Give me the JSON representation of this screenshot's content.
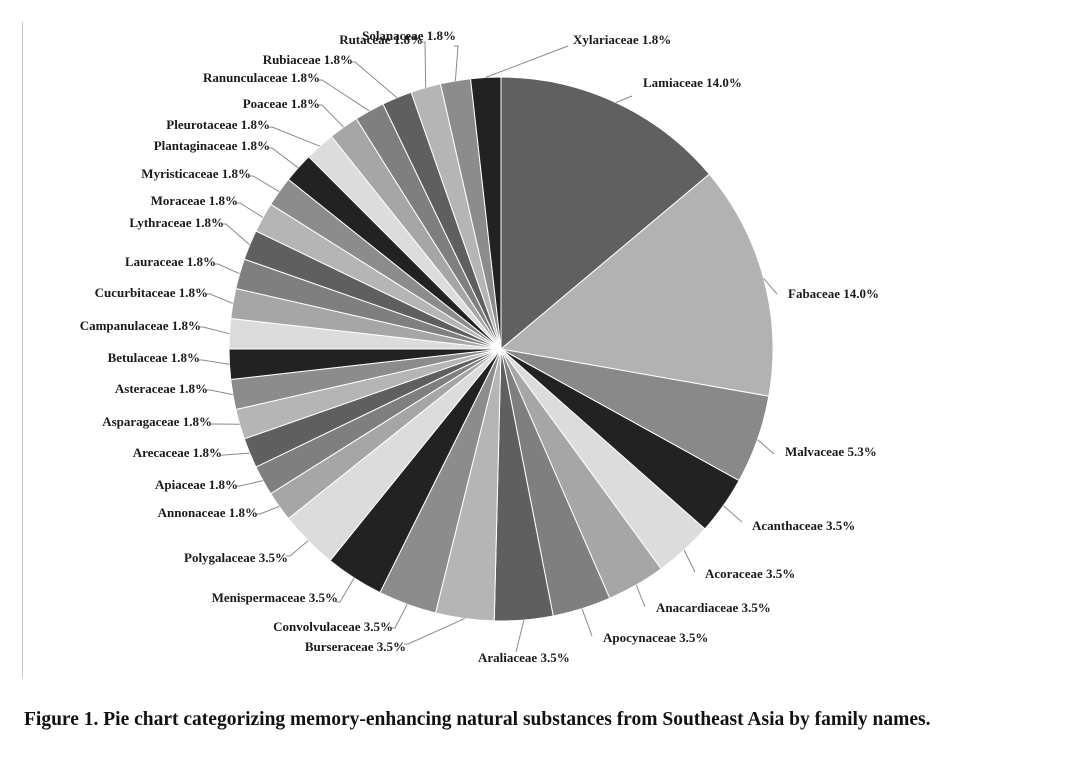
{
  "caption": "Figure 1. Pie chart categorizing memory-enhancing natural substances from Southeast Asia by family names.",
  "chart_data": {
    "type": "pie",
    "title": "",
    "start": "12 o'clock",
    "direction": "clockwise",
    "slices": [
      {
        "label": "Lamiaceae",
        "display": "Lamiaceae  14.0%",
        "value": 14.0,
        "color": "#606060"
      },
      {
        "label": "Fabaceae",
        "display": "Fabaceae 14.0%",
        "value": 14.0,
        "color": "#b2b2b2"
      },
      {
        "label": "Malvaceae",
        "display": "Malvaceae 5.3%",
        "value": 5.3,
        "color": "#898989"
      },
      {
        "label": "Acanthaceae",
        "display": "Acanthaceae 3.5%",
        "value": 3.5,
        "color": "#222222"
      },
      {
        "label": "Acoraceae",
        "display": "Acoraceae 3.5%",
        "value": 3.5,
        "color": "#dcdcdc"
      },
      {
        "label": "Anacardiaceae",
        "display": "Anacardiaceae 3.5%",
        "value": 3.5,
        "color": "#a6a6a6"
      },
      {
        "label": "Apocynaceae",
        "display": "Apocynaceae 3.5%",
        "value": 3.5,
        "color": "#7f7f7f"
      },
      {
        "label": "Araliaceae",
        "display": "Araliaceae 3.5%",
        "value": 3.5,
        "color": "#5f5f5f"
      },
      {
        "label": "Burseraceae",
        "display": "Burseraceae 3.5%",
        "value": 3.5,
        "color": "#b5b5b5"
      },
      {
        "label": "Convolvulaceae",
        "display": "Convolvulaceae 3.5%",
        "value": 3.5,
        "color": "#8c8c8c"
      },
      {
        "label": "Menispermaceae",
        "display": "Menispermaceae 3.5%",
        "value": 3.5,
        "color": "#222222"
      },
      {
        "label": "Polygalaceae",
        "display": "Polygalaceae 3.5%",
        "value": 3.5,
        "color": "#dcdcdc"
      },
      {
        "label": "Annonaceae",
        "display": "Annonaceae 1.8%",
        "value": 1.8,
        "color": "#a6a6a6"
      },
      {
        "label": "Apiaceae",
        "display": "Apiaceae 1.8%",
        "value": 1.8,
        "color": "#7f7f7f"
      },
      {
        "label": "Arecaceae",
        "display": "Arecaceae 1.8%",
        "value": 1.8,
        "color": "#5f5f5f"
      },
      {
        "label": "Asparagaceae",
        "display": "Asparagaceae 1.8%",
        "value": 1.8,
        "color": "#b5b5b5"
      },
      {
        "label": "Asteraceae",
        "display": "Asteraceae 1.8%",
        "value": 1.8,
        "color": "#8c8c8c"
      },
      {
        "label": "Betulaceae",
        "display": "Betulaceae 1.8%",
        "value": 1.8,
        "color": "#222222"
      },
      {
        "label": "Campanulaceae",
        "display": "Campanulaceae 1.8%",
        "value": 1.8,
        "color": "#dcdcdc"
      },
      {
        "label": "Cucurbitaceae",
        "display": "Cucurbitaceae 1.8%",
        "value": 1.8,
        "color": "#a6a6a6"
      },
      {
        "label": "Lauraceae",
        "display": "Lauraceae 1.8%",
        "value": 1.8,
        "color": "#7f7f7f"
      },
      {
        "label": "Lythraceae",
        "display": "Lythraceae 1.8%",
        "value": 1.8,
        "color": "#5f5f5f"
      },
      {
        "label": "Moraceae",
        "display": "Moraceae 1.8%",
        "value": 1.8,
        "color": "#b5b5b5"
      },
      {
        "label": "Myristicaceae",
        "display": "Myristicaceae 1.8%",
        "value": 1.8,
        "color": "#8c8c8c"
      },
      {
        "label": "Plantaginaceae",
        "display": "Plantaginaceae 1.8%",
        "value": 1.8,
        "color": "#222222"
      },
      {
        "label": "Pleurotaceae",
        "display": "Pleurotaceae 1.8%",
        "value": 1.8,
        "color": "#dcdcdc"
      },
      {
        "label": "Poaceae",
        "display": "Poaceae 1.8%",
        "value": 1.8,
        "color": "#a6a6a6"
      },
      {
        "label": "Ranunculaceae",
        "display": "Ranunculaceae 1.8%",
        "value": 1.8,
        "color": "#7f7f7f"
      },
      {
        "label": "Rubiaceae",
        "display": "Rubiaceae 1.8%",
        "value": 1.8,
        "color": "#5f5f5f"
      },
      {
        "label": "Rutaceae",
        "display": "Rutaceae 1.8%",
        "value": 1.8,
        "color": "#b5b5b5"
      },
      {
        "label": "Solanaceae",
        "display": "Solanaceae 1.8%",
        "value": 1.8,
        "color": "#8c8c8c"
      },
      {
        "label": "Xylariaceae",
        "display": "Xylariaceae 1.8%",
        "value": 1.8,
        "color": "#222222"
      }
    ]
  }
}
